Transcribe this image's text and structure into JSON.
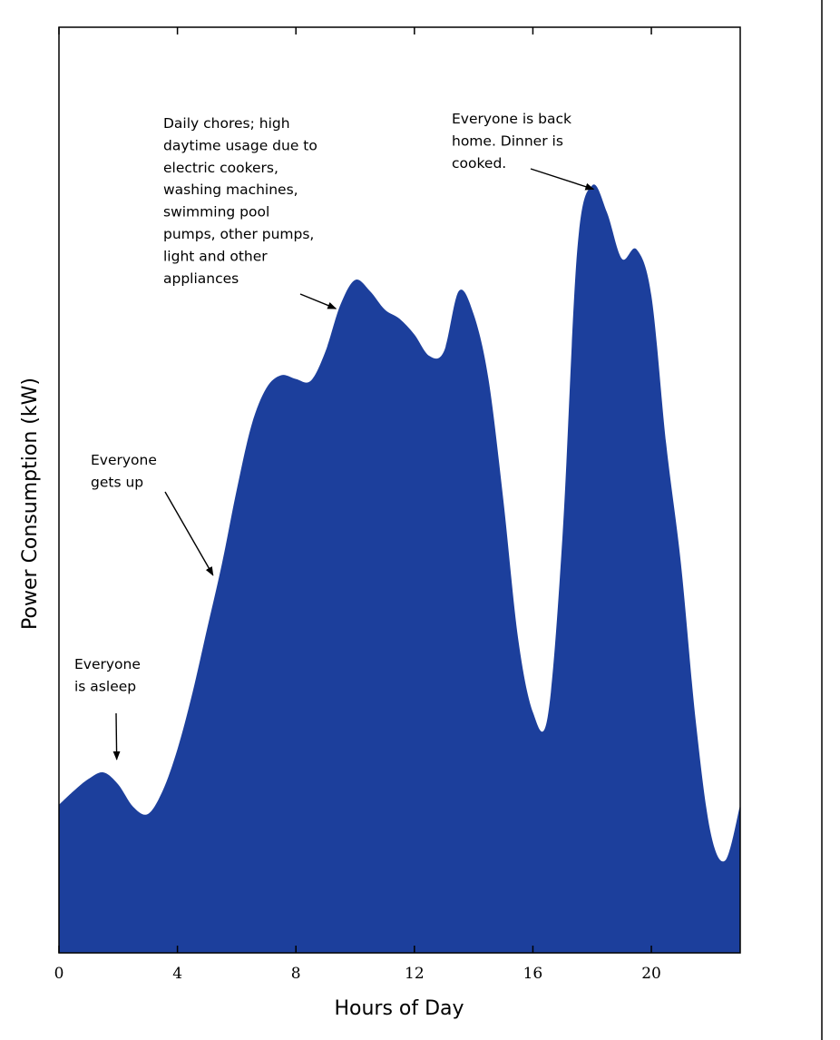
{
  "chart_data": {
    "type": "area",
    "xlabel": "Hours of Day",
    "ylabel": "Power Consumption (kW)",
    "x_ticks": [
      0,
      4,
      8,
      12,
      16,
      20
    ],
    "xlim": [
      0,
      23
    ],
    "ylim": [
      0,
      100
    ],
    "color": "#1c3f9c",
    "grid": false,
    "legend": "none",
    "series": [
      {
        "x": [
          0,
          0.5,
          1,
          1.5,
          2,
          2.5,
          3,
          3.5,
          4,
          4.5,
          5,
          5.5,
          6,
          6.5,
          7,
          7.5,
          8,
          8.5,
          9,
          9.5,
          10,
          10.5,
          11,
          11.5,
          12,
          12.5,
          13,
          13.5,
          14,
          14.5,
          15,
          15.5,
          16,
          16.5,
          17,
          17.5,
          18,
          18.5,
          19,
          19.5,
          20,
          20.5,
          21,
          21.5,
          22,
          22.5,
          23
        ],
        "values": [
          16,
          17.5,
          18.8,
          19.5,
          18.2,
          15.8,
          15,
          17.5,
          22,
          28,
          35,
          42,
          50,
          57,
          61,
          62.4,
          62,
          61.8,
          65,
          70,
          72.7,
          71.5,
          69.5,
          68.5,
          66.8,
          64.5,
          65,
          71.5,
          69,
          62,
          49,
          34,
          26,
          25.5,
          45,
          76,
          82.9,
          80,
          75,
          76,
          71,
          55,
          42,
          25,
          13,
          10,
          16
        ]
      }
    ],
    "annotations": [
      {
        "lines": [
          "Daily chores; high",
          "daytime usage due to",
          "electric cookers,",
          "washing machines,",
          "swimming pool",
          "pumps, other pumps,",
          "light and other",
          "appliances"
        ],
        "x": 9.35,
        "y": 69.6
      },
      {
        "lines": [
          "Everyone is back",
          "home. Dinner is",
          "cooked."
        ],
        "x": 18.05,
        "y": 82.5
      },
      {
        "lines": [
          "Everyone",
          "gets up"
        ],
        "x": 5.2,
        "y": 40.8
      },
      {
        "lines": [
          "Everyone",
          "is asleep"
        ],
        "x": 1.95,
        "y": 20.9
      }
    ]
  }
}
